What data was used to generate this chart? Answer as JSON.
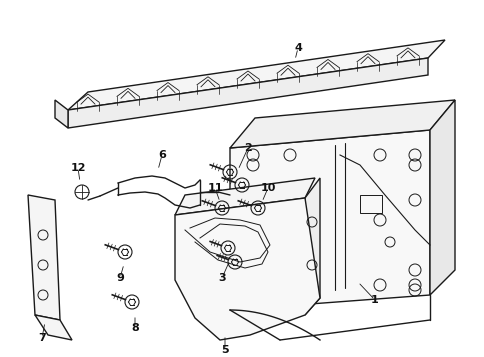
{
  "background_color": "#ffffff",
  "line_color": "#1a1a1a",
  "text_color": "#111111",
  "figsize": [
    4.85,
    3.57
  ],
  "dpi": 100,
  "xlim": [
    0,
    485
  ],
  "ylim": [
    0,
    357
  ]
}
